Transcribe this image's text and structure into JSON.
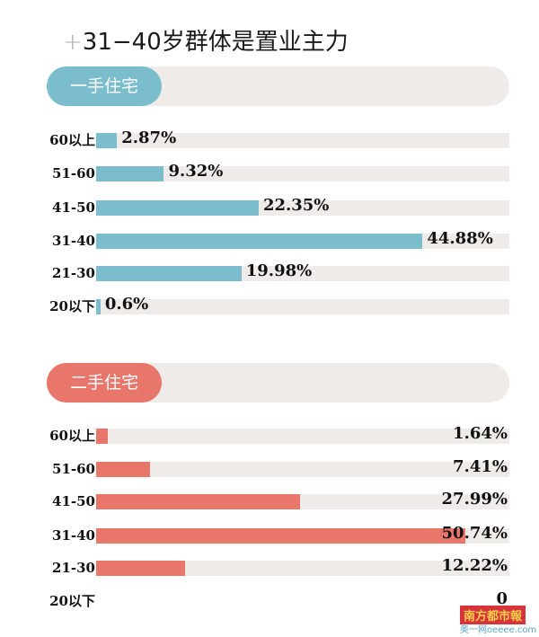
{
  "title": "31−40岁群体是置业主力",
  "title_icon": "+",
  "chart_data": [
    {
      "type": "bar",
      "orientation": "horizontal",
      "title": "一手住宅",
      "color": "#7bbccd",
      "categories": [
        "60以上",
        "51-60",
        "41-50",
        "31-40",
        "21-30",
        "20以下"
      ],
      "values": [
        2.87,
        9.32,
        22.35,
        44.88,
        19.98,
        0.6
      ],
      "labels": [
        "2.87%",
        "9.32%",
        "22.35%",
        "44.88%",
        "19.98%",
        "0.6%"
      ]
    },
    {
      "type": "bar",
      "orientation": "horizontal",
      "title": "二手住宅",
      "color": "#e9766a",
      "categories": [
        "60以上",
        "51-60",
        "41-50",
        "31-40",
        "21-30",
        "20以下"
      ],
      "values": [
        1.64,
        7.41,
        27.99,
        50.74,
        12.22,
        0
      ],
      "labels": [
        "1.64%",
        "7.41%",
        "27.99%",
        "50.74%",
        "12.22%",
        "0"
      ]
    }
  ],
  "watermark": {
    "logo": "南方都市報",
    "site": "奥一网oeeee.com"
  }
}
